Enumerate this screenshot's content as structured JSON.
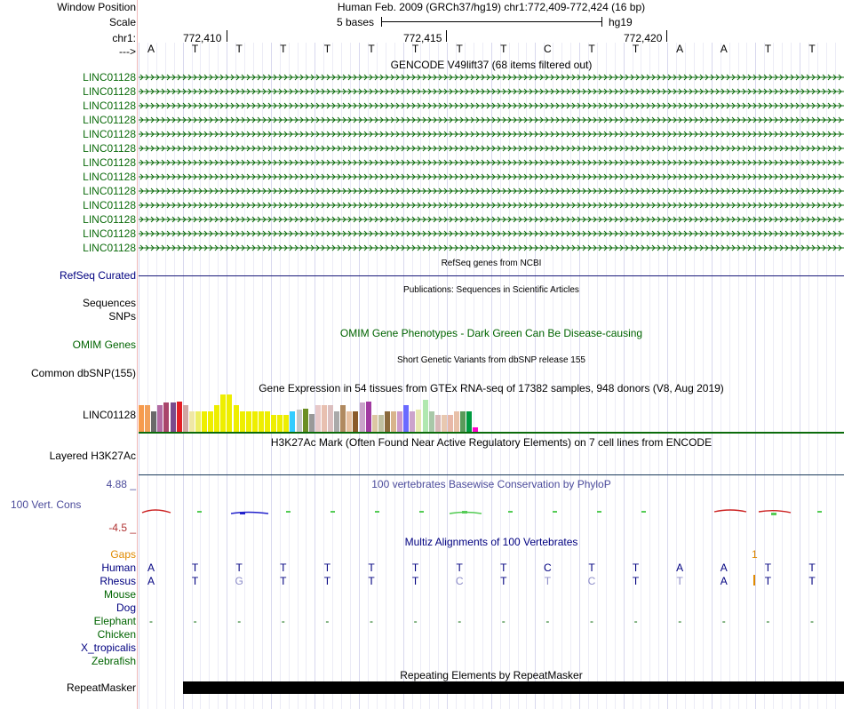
{
  "header": {
    "window_position_label": "Window Position",
    "window_position_value": "Human Feb. 2009 (GRCh37/hg19)   chr1:772,409-772,424 (16 bp)",
    "scale_label": "Scale",
    "scale_text": "5 bases",
    "assembly": "hg19",
    "chrom_label": "chr1:",
    "strand_label": "--->",
    "positions": [
      "772,410",
      "772,415",
      "772,420"
    ]
  },
  "sequence": [
    "A",
    "T",
    "T",
    "T",
    "T",
    "T",
    "T",
    "T",
    "T",
    "C",
    "T",
    "T",
    "A",
    "A",
    "T",
    "T"
  ],
  "tracks": {
    "gencode": {
      "title": "GENCODE V49lift37 (68 items filtered out)",
      "genes": [
        "LINC01128",
        "LINC01128",
        "LINC01128",
        "LINC01128",
        "LINC01128",
        "LINC01128",
        "LINC01128",
        "LINC01128",
        "LINC01128",
        "LINC01128",
        "LINC01128",
        "LINC01128",
        "LINC01128"
      ],
      "color": "#0b6b0b"
    },
    "refseq": {
      "title": "RefSeq genes from NCBI",
      "label": "RefSeq Curated",
      "color": "#1a1a7a"
    },
    "publications": {
      "title": "Publications: Sequences in Scientific Articles",
      "labels": [
        "Sequences",
        "SNPs"
      ]
    },
    "omim": {
      "title": "OMIM Gene Phenotypes - Dark Green Can Be Disease-causing",
      "label": "OMIM Genes",
      "color": "#0a5d0a"
    },
    "dbsnp": {
      "title": "Short Genetic Variants from dbSNP release 155",
      "label": "Common dbSNP(155)"
    },
    "gtex": {
      "title": "Gene Expression in 54 tissues from GTEx RNA-seq of 17382 samples, 948 donors (V8, Aug 2019)",
      "label": "LINC01128",
      "bars": [
        {
          "value": 0.72,
          "color": "#f79b4d"
        },
        {
          "value": 0.72,
          "color": "#f2a05a"
        },
        {
          "value": 0.55,
          "color": "#6a6a6a"
        },
        {
          "value": 0.72,
          "color": "#b36ba3"
        },
        {
          "value": 0.78,
          "color": "#a9456b"
        },
        {
          "value": 0.78,
          "color": "#7a4b8c"
        },
        {
          "value": 0.82,
          "color": "#e31f26"
        },
        {
          "value": 0.72,
          "color": "#d1a6a2"
        },
        {
          "value": 0.55,
          "color": "#efe7a5"
        },
        {
          "value": 0.55,
          "color": "#eeee66"
        },
        {
          "value": 0.55,
          "color": "#eeee00"
        },
        {
          "value": 0.55,
          "color": "#eeee00"
        },
        {
          "value": 0.72,
          "color": "#eeee00"
        },
        {
          "value": 1.0,
          "color": "#eeee00"
        },
        {
          "value": 1.0,
          "color": "#eeee00"
        },
        {
          "value": 0.72,
          "color": "#eeee00"
        },
        {
          "value": 0.55,
          "color": "#eeee00"
        },
        {
          "value": 0.55,
          "color": "#eeee00"
        },
        {
          "value": 0.55,
          "color": "#eeee00"
        },
        {
          "value": 0.55,
          "color": "#eeee00"
        },
        {
          "value": 0.55,
          "color": "#eeee00"
        },
        {
          "value": 0.45,
          "color": "#eeee00"
        },
        {
          "value": 0.45,
          "color": "#eeee00"
        },
        {
          "value": 0.45,
          "color": "#eeee00"
        },
        {
          "value": 0.55,
          "color": "#33ccff"
        },
        {
          "value": 0.6,
          "color": "#c6c6c6"
        },
        {
          "value": 0.62,
          "color": "#6b8e23"
        },
        {
          "value": 0.48,
          "color": "#999999"
        },
        {
          "value": 0.72,
          "color": "#e8c9c9"
        },
        {
          "value": 0.72,
          "color": "#e8c0b0"
        },
        {
          "value": 0.72,
          "color": "#dcbfbf"
        },
        {
          "value": 0.55,
          "color": "#aaaaaa"
        },
        {
          "value": 0.72,
          "color": "#b08a60"
        },
        {
          "value": 0.55,
          "color": "#e7c0a0"
        },
        {
          "value": 0.55,
          "color": "#8a5a2a"
        },
        {
          "value": 0.78,
          "color": "#c9a3c9"
        },
        {
          "value": 0.82,
          "color": "#a13aa1"
        },
        {
          "value": 0.45,
          "color": "#dcc7a3"
        },
        {
          "value": 0.45,
          "color": "#c0c0a0"
        },
        {
          "value": 0.55,
          "color": "#8b6a3c"
        },
        {
          "value": 0.55,
          "color": "#d8b48c"
        },
        {
          "value": 0.55,
          "color": "#cc99cc"
        },
        {
          "value": 0.72,
          "color": "#6a6aff"
        },
        {
          "value": 0.55,
          "color": "#cca3cc"
        },
        {
          "value": 0.6,
          "color": "#e8e8b0"
        },
        {
          "value": 0.85,
          "color": "#b0e8b0"
        },
        {
          "value": 0.55,
          "color": "#a8c8a8"
        },
        {
          "value": 0.45,
          "color": "#d8b8b8"
        },
        {
          "value": 0.45,
          "color": "#e8c8b0"
        },
        {
          "value": 0.45,
          "color": "#e8b8a8"
        },
        {
          "value": 0.55,
          "color": "#e8c0a8"
        },
        {
          "value": 0.55,
          "color": "#5a9a5a"
        },
        {
          "value": 0.55,
          "color": "#009a40"
        },
        {
          "value": 0.12,
          "color": "#ff00cc"
        }
      ]
    },
    "h3k27ac": {
      "title": "H3K27Ac Mark (Often Found Near Active Regulatory Elements) on 7 cell lines from ENCODE",
      "label": "Layered H3K27Ac"
    },
    "conservation": {
      "title": "100 vertebrates Basewise Conservation by PhyloP",
      "label": "100 Vert. Cons",
      "max": "4.88 _",
      "min": "-4.5 _"
    },
    "multiz": {
      "title": "Multiz Alignments of 100 Vertebrates",
      "species": [
        {
          "name": "Gaps",
          "color": "#e08a00"
        },
        {
          "name": "Human",
          "color": "#000080"
        },
        {
          "name": "Rhesus",
          "color": "#000080"
        },
        {
          "name": "Mouse",
          "color": "#006400"
        },
        {
          "name": "Dog",
          "color": "#000080"
        },
        {
          "name": "Elephant",
          "color": "#006400"
        },
        {
          "name": "Chicken",
          "color": "#006400"
        },
        {
          "name": "X_tropicalis",
          "color": "#000080"
        },
        {
          "name": "Zebrafish",
          "color": "#006400"
        }
      ],
      "gap_mark": "1",
      "human_seq": [
        "A",
        "T",
        "T",
        "T",
        "T",
        "T",
        "T",
        "T",
        "T",
        "C",
        "T",
        "T",
        "A",
        "A",
        "T",
        "T"
      ],
      "rhesus_seq": [
        "A",
        "T",
        "G",
        "T",
        "T",
        "T",
        "T",
        "C",
        "T",
        "T",
        "C",
        "T",
        "T",
        "A",
        "T",
        "T"
      ],
      "elephant_seq": [
        "-",
        "-",
        "-",
        "-",
        "-",
        "-",
        "-",
        "-",
        "-",
        "-",
        "-",
        "-",
        "-",
        "-",
        "-",
        "-"
      ]
    },
    "repeatmasker": {
      "title": "Repeating Elements by RepeatMasker",
      "label": "RepeatMasker"
    }
  }
}
